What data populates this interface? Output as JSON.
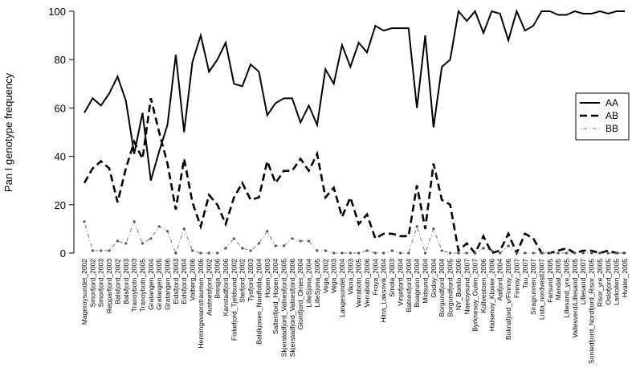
{
  "chart_data": {
    "type": "line",
    "ylabel": "Pan I genotype frequency",
    "categories": [
      "Mageroysundet_2002",
      "Smorfjord_2002",
      "Smorfjord_2003",
      "Repparfjord_2003",
      "Balsfjord_2002",
      "Balsfjord_2003",
      "Tranoybotn_2003",
      "Tranoybotn_2005",
      "Gratangen_2004",
      "Gratangen_2005",
      "Gratangen_2006",
      "Eidsfjord_2003",
      "Eidsfjord_2004",
      "Valberg_2006",
      "Henningsvaerstraumen_2006",
      "Austnesfjord_2002",
      "Bresjja_2006",
      "Kanstadfjord_2006",
      "Fiskefjord_Tjeldsund_2002",
      "Steifjord_2002",
      "Tysfjord_2003",
      "Baldkjosen_Nordfolda_2004",
      "Hopen_2003",
      "Saltenfjord_Hopen_2004",
      "Skjerstadfjord_Valnesfjord_2005",
      "Skjerstadfjord_Valnesfjord_2006",
      "Glomfjord_Ornes_2004",
      "LilleSjona_2004",
      "LilleSjona_2005",
      "Vega_2002",
      "Vega_2003",
      "Langesundet_2004",
      "Vikna_2003",
      "Verrabotn_2005",
      "Verrabotn_2006",
      "Froya_2004",
      "Hitra_Laksovik_2004",
      "Smola_2003",
      "Vinjefjord_2004",
      "Batnesfjord_2004",
      "Buagrunn_2004",
      "Midsund_2004",
      "Godoy_2004",
      "Borgundfjord_2004",
      "Borgundfjord_2005",
      "NY_Bomlo_2006",
      "Naeroysund_2007",
      "Byrknesoy_Gulen_2007",
      "Kollvestoen_2006",
      "Halsenoy_Kloster_2006",
      "Aalfjord_2004",
      "Boknafjord_v/Finnoy_2006",
      "Finnoy_2007",
      "Tau_2007",
      "Siragrunnen_2007",
      "Lista_nordvestl2007",
      "Farsund_2005",
      "Mandal_2005",
      "Lillesand_yre_2005",
      "Vallesverd/Lillesand_2005",
      "Lillesand_2007",
      "Sonledfjord_Nordfjord_Risor_2005",
      "Risor_yre_2005",
      "Oslofjord_2005",
      "Larkollen_2005",
      "Hvaler_2005"
    ],
    "series": [
      {
        "name": "AA",
        "color": "#000000",
        "style": "solid",
        "values": [
          58,
          64,
          61,
          66,
          73,
          63,
          41,
          58,
          30,
          42,
          53,
          82,
          50,
          79,
          90,
          75,
          80,
          87,
          70,
          69,
          78,
          75,
          57,
          62,
          64,
          64,
          54,
          61,
          53,
          76,
          70,
          86,
          77,
          87,
          83,
          94,
          92,
          93,
          93,
          93,
          60,
          90,
          52,
          77,
          80,
          100,
          96,
          100,
          91,
          100,
          99,
          88,
          100,
          92,
          94,
          100,
          100,
          98.5,
          98.5,
          100,
          99,
          99,
          100,
          99,
          100,
          100
        ]
      },
      {
        "name": "AB",
        "color": "#000000",
        "style": "dashed",
        "values": [
          29,
          35,
          38,
          35,
          21,
          35,
          46,
          39,
          64,
          50,
          37,
          18,
          39,
          21,
          11,
          24,
          20,
          12,
          23,
          29,
          22,
          23,
          38,
          29,
          34,
          34,
          39,
          34,
          41,
          23,
          27,
          15,
          23,
          12,
          16,
          6,
          8,
          8,
          7,
          7,
          28,
          10,
          37,
          22,
          20,
          1,
          4,
          0,
          7,
          0,
          1,
          8,
          0,
          8,
          6,
          0,
          0,
          1,
          2,
          0,
          1,
          1,
          0,
          1,
          0,
          0
        ]
      },
      {
        "name": "BB",
        "color": "#555555",
        "style": "dotdash",
        "values": [
          13,
          1,
          1,
          1,
          5,
          4,
          13,
          4,
          6,
          11,
          9,
          0,
          10,
          1,
          0,
          0,
          0,
          2,
          6,
          2,
          1,
          4,
          9,
          3,
          3,
          6,
          5,
          5,
          1,
          1,
          0,
          0,
          0,
          0,
          1,
          0,
          0,
          1,
          0,
          0,
          11,
          0,
          10,
          1,
          0,
          0,
          0,
          0,
          2,
          1,
          0,
          3,
          0,
          0,
          0,
          0,
          0,
          0,
          0,
          0,
          0,
          0,
          0,
          0,
          0,
          0
        ]
      }
    ],
    "ylim": [
      0,
      100
    ],
    "yticks": [
      0,
      20,
      40,
      60,
      80,
      100
    ],
    "legend": "right"
  }
}
